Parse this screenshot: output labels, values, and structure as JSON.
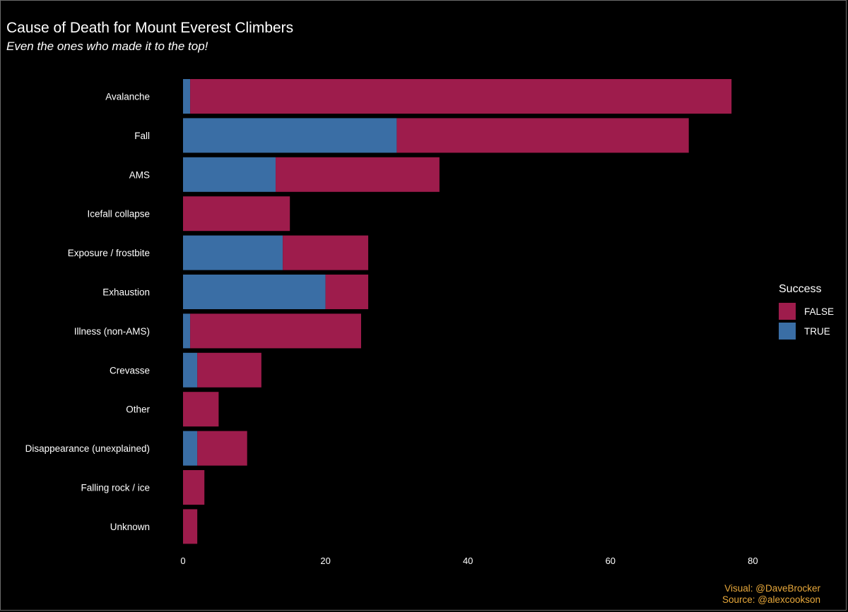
{
  "title": "Cause of Death for Mount Everest Climbers",
  "subtitle": "Even the ones who made it to the top!",
  "caption": {
    "visual": "Visual: @DaveBrocker",
    "source": "Source: @alexcookson"
  },
  "colors": {
    "background": "#000000",
    "false": "#9e1c4c",
    "true": "#3a6ea5",
    "caption": "#e9a93b"
  },
  "chart_data": {
    "type": "bar",
    "orientation": "horizontal",
    "stacked": true,
    "categories": [
      "Avalanche",
      "Fall",
      "AMS",
      "Icefall collapse",
      "Exposure / frostbite",
      "Exhaustion",
      "Illness (non-AMS)",
      "Crevasse",
      "Other",
      "Disappearance (unexplained)",
      "Falling rock / ice",
      "Unknown"
    ],
    "series": [
      {
        "name": "TRUE",
        "values": [
          1,
          30,
          13,
          0,
          14,
          20,
          1,
          2,
          0,
          2,
          0,
          0
        ]
      },
      {
        "name": "FALSE",
        "values": [
          76,
          41,
          23,
          15,
          12,
          6,
          24,
          9,
          5,
          7,
          3,
          2
        ]
      }
    ],
    "xticks": [
      0,
      20,
      40,
      60,
      80
    ],
    "xlim": [
      0,
      85
    ],
    "legend": {
      "title": "Success",
      "position": "right",
      "entries": [
        "FALSE",
        "TRUE"
      ]
    },
    "grid": false
  }
}
